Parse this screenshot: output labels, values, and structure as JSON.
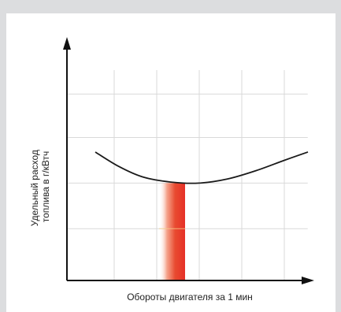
{
  "chart_data": {
    "type": "line",
    "title": "",
    "xlabel": "Обороты двигателя за 1 мин",
    "ylabel_lines": [
      "Удельный расход",
      "топлива в г/кВтч"
    ],
    "xlim": [
      0,
      1
    ],
    "ylim": [
      0,
      1
    ],
    "grid": true,
    "x_ticks": [
      0.1923,
      0.3654,
      0.5385,
      0.7115,
      0.8846
    ],
    "y_ticks": [
      0.2315,
      0.4352,
      0.6389,
      0.8333
    ],
    "series": [
      {
        "x": [
          0.1154,
          0.2115,
          0.3077,
          0.4231,
          0.5385,
          0.6538,
          0.7692,
          0.8846,
          0.9808
        ],
        "y": [
          0.5741,
          0.5093,
          0.463,
          0.4398,
          0.4352,
          0.4537,
          0.4907,
          0.537,
          0.5741
        ]
      }
    ],
    "highlight_band": {
      "x_start": 0.375,
      "x_end": 0.4808,
      "y_top": 0.4352,
      "colors": [
        "#ffffff",
        "#f5a48c",
        "#e84a30",
        "#e63027"
      ]
    },
    "curve_color": "#1a1a1a",
    "axis_color": "#111111",
    "grid_color": "#d9d9d9"
  }
}
